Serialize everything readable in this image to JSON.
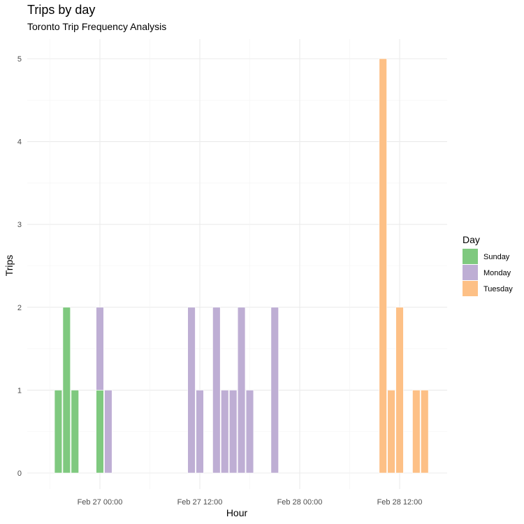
{
  "chart_data": {
    "type": "bar",
    "title": "Trips by day",
    "subtitle": "Toronto Trip Frequency Analysis",
    "xlabel": "Hour",
    "ylabel": "Trips",
    "x_tick_labels": [
      "Feb 27 00:00",
      "Feb 27 12:00",
      "Feb 28 00:00",
      "Feb 28 12:00"
    ],
    "y_ticks": [
      0,
      1,
      2,
      3,
      4,
      5
    ],
    "ylim": [
      0,
      5
    ],
    "xlim": [
      "2016-02-26 16:00",
      "2016-02-28 21:00"
    ],
    "grid": true,
    "legend": {
      "title": "Day",
      "position": "right",
      "entries": [
        "Sunday",
        "Monday",
        "Tuesday"
      ]
    },
    "colors": {
      "Sunday": "#7fc97f",
      "Monday": "#beaed4",
      "Tuesday": "#fdc086"
    },
    "bars": [
      {
        "hour": "Feb 26 19:00",
        "day": "Sunday",
        "value": 1
      },
      {
        "hour": "Feb 26 20:00",
        "day": "Sunday",
        "value": 2
      },
      {
        "hour": "Feb 26 21:00",
        "day": "Sunday",
        "value": 1
      },
      {
        "hour": "Feb 27 00:00",
        "day": "Sunday",
        "value": 1
      },
      {
        "hour": "Feb 27 00:00",
        "day": "Monday",
        "value": 1
      },
      {
        "hour": "Feb 27 01:00",
        "day": "Monday",
        "value": 1
      },
      {
        "hour": "Feb 27 11:00",
        "day": "Monday",
        "value": 2
      },
      {
        "hour": "Feb 27 12:00",
        "day": "Monday",
        "value": 1
      },
      {
        "hour": "Feb 27 14:00",
        "day": "Monday",
        "value": 2
      },
      {
        "hour": "Feb 27 15:00",
        "day": "Monday",
        "value": 1
      },
      {
        "hour": "Feb 27 16:00",
        "day": "Monday",
        "value": 1
      },
      {
        "hour": "Feb 27 17:00",
        "day": "Monday",
        "value": 2
      },
      {
        "hour": "Feb 27 18:00",
        "day": "Monday",
        "value": 1
      },
      {
        "hour": "Feb 27 21:00",
        "day": "Monday",
        "value": 2
      },
      {
        "hour": "Feb 28 10:00",
        "day": "Tuesday",
        "value": 5
      },
      {
        "hour": "Feb 28 11:00",
        "day": "Tuesday",
        "value": 1
      },
      {
        "hour": "Feb 28 12:00",
        "day": "Tuesday",
        "value": 2
      },
      {
        "hour": "Feb 28 14:00",
        "day": "Tuesday",
        "value": 1
      },
      {
        "hour": "Feb 28 15:00",
        "day": "Tuesday",
        "value": 1
      }
    ]
  }
}
